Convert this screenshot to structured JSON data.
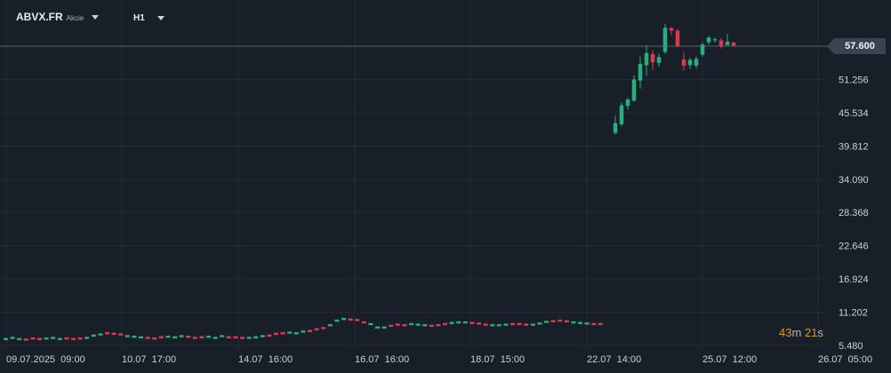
{
  "header": {
    "symbol": "ABVX.FR",
    "symbol_type": "Akcie",
    "timeframe": "H1"
  },
  "countdown": {
    "minutes": "43",
    "minutes_unit": "m",
    "seconds": "21",
    "seconds_unit": "s"
  },
  "current_price": "57.600",
  "colors": {
    "background": "#181f29",
    "grid": "#222b36",
    "up": "#26b07c",
    "down": "#e0394e",
    "axis_text": "#c9d1d9",
    "countdown": "#d99a2e"
  },
  "chart_data": {
    "type": "candlestick",
    "y_ticks": [
      "57.600",
      "51.256",
      "45.534",
      "39.812",
      "34.090",
      "28.368",
      "22.646",
      "16.924",
      "11.202",
      "5.480"
    ],
    "x_ticks": [
      "09.07.2025  09:00",
      "10.07  17:00",
      "14.07  16:00",
      "16.07  16:00",
      "18.07  15:00",
      "22.07  14:00",
      "25.07  12:00",
      "26.07  05:00"
    ],
    "ylim": [
      5.48,
      57.6
    ],
    "current_price": 57.6,
    "grid": true,
    "candles": [
      {
        "o": 42.5,
        "h": 45.5,
        "l": 42.2,
        "c": 44.2
      },
      {
        "o": 44.0,
        "h": 47.8,
        "l": 43.6,
        "c": 47.3
      },
      {
        "o": 47.2,
        "h": 48.6,
        "l": 46.5,
        "c": 48.3
      },
      {
        "o": 48.1,
        "h": 52.5,
        "l": 47.9,
        "c": 51.8
      },
      {
        "o": 51.6,
        "h": 55.8,
        "l": 50.2,
        "c": 54.5
      },
      {
        "o": 54.3,
        "h": 57.8,
        "l": 52.4,
        "c": 56.4
      },
      {
        "o": 56.2,
        "h": 56.9,
        "l": 53.5,
        "c": 54.8
      },
      {
        "o": 54.7,
        "h": 56.3,
        "l": 54.0,
        "c": 55.7
      },
      {
        "o": 56.6,
        "h": 61.5,
        "l": 56.2,
        "c": 60.8
      },
      {
        "o": 60.7,
        "h": 61.0,
        "l": 59.5,
        "c": 60.3
      },
      {
        "o": 60.3,
        "h": 60.6,
        "l": 57.4,
        "c": 57.6
      },
      {
        "o": 55.3,
        "h": 56.6,
        "l": 53.3,
        "c": 54.2
      },
      {
        "o": 54.3,
        "h": 55.6,
        "l": 53.6,
        "c": 55.2
      },
      {
        "o": 54.2,
        "h": 55.8,
        "l": 53.7,
        "c": 55.4
      },
      {
        "o": 56.1,
        "h": 58.3,
        "l": 55.8,
        "c": 57.9
      },
      {
        "o": 58.3,
        "h": 59.4,
        "l": 57.9,
        "c": 59.1
      },
      {
        "o": 58.6,
        "h": 59.1,
        "l": 58.2,
        "c": 58.8
      },
      {
        "o": 58.6,
        "h": 59.0,
        "l": 57.2,
        "c": 57.6
      },
      {
        "o": 57.8,
        "h": 59.7,
        "l": 57.8,
        "c": 58.4
      },
      {
        "o": 58.2,
        "h": 58.4,
        "l": 57.6,
        "c": 57.7
      }
    ],
    "volume_bars": [
      6.6,
      6.8,
      6.6,
      6.5,
      6.7,
      6.6,
      6.7,
      6.8,
      6.6,
      6.7,
      6.6,
      6.7,
      6.8,
      7.2,
      7.4,
      7.6,
      7.5,
      7.4,
      7.1,
      7.0,
      6.9,
      6.8,
      6.7,
      6.9,
      7.0,
      6.9,
      7.1,
      7.0,
      6.8,
      6.9,
      7.0,
      6.8,
      7.1,
      6.9,
      6.9,
      6.8,
      6.8,
      6.9,
      7.1,
      7.2,
      7.5,
      7.6,
      7.7,
      7.6,
      7.9,
      8.0,
      8.3,
      8.5,
      9.0,
      9.8,
      10.1,
      10.0,
      9.9,
      9.5,
      9.2,
      8.6,
      8.6,
      8.9,
      9.1,
      9.0,
      9.2,
      9.1,
      9.0,
      8.9,
      9.0,
      9.2,
      9.4,
      9.5,
      9.5,
      9.4,
      9.3,
      9.1,
      9.0,
      9.0,
      9.1,
      9.2,
      9.2,
      9.1,
      9.1,
      9.3,
      9.6,
      9.7,
      9.8,
      9.7,
      9.5,
      9.4,
      9.3,
      9.2,
      9.2
    ],
    "volume_colors": "alternating"
  }
}
